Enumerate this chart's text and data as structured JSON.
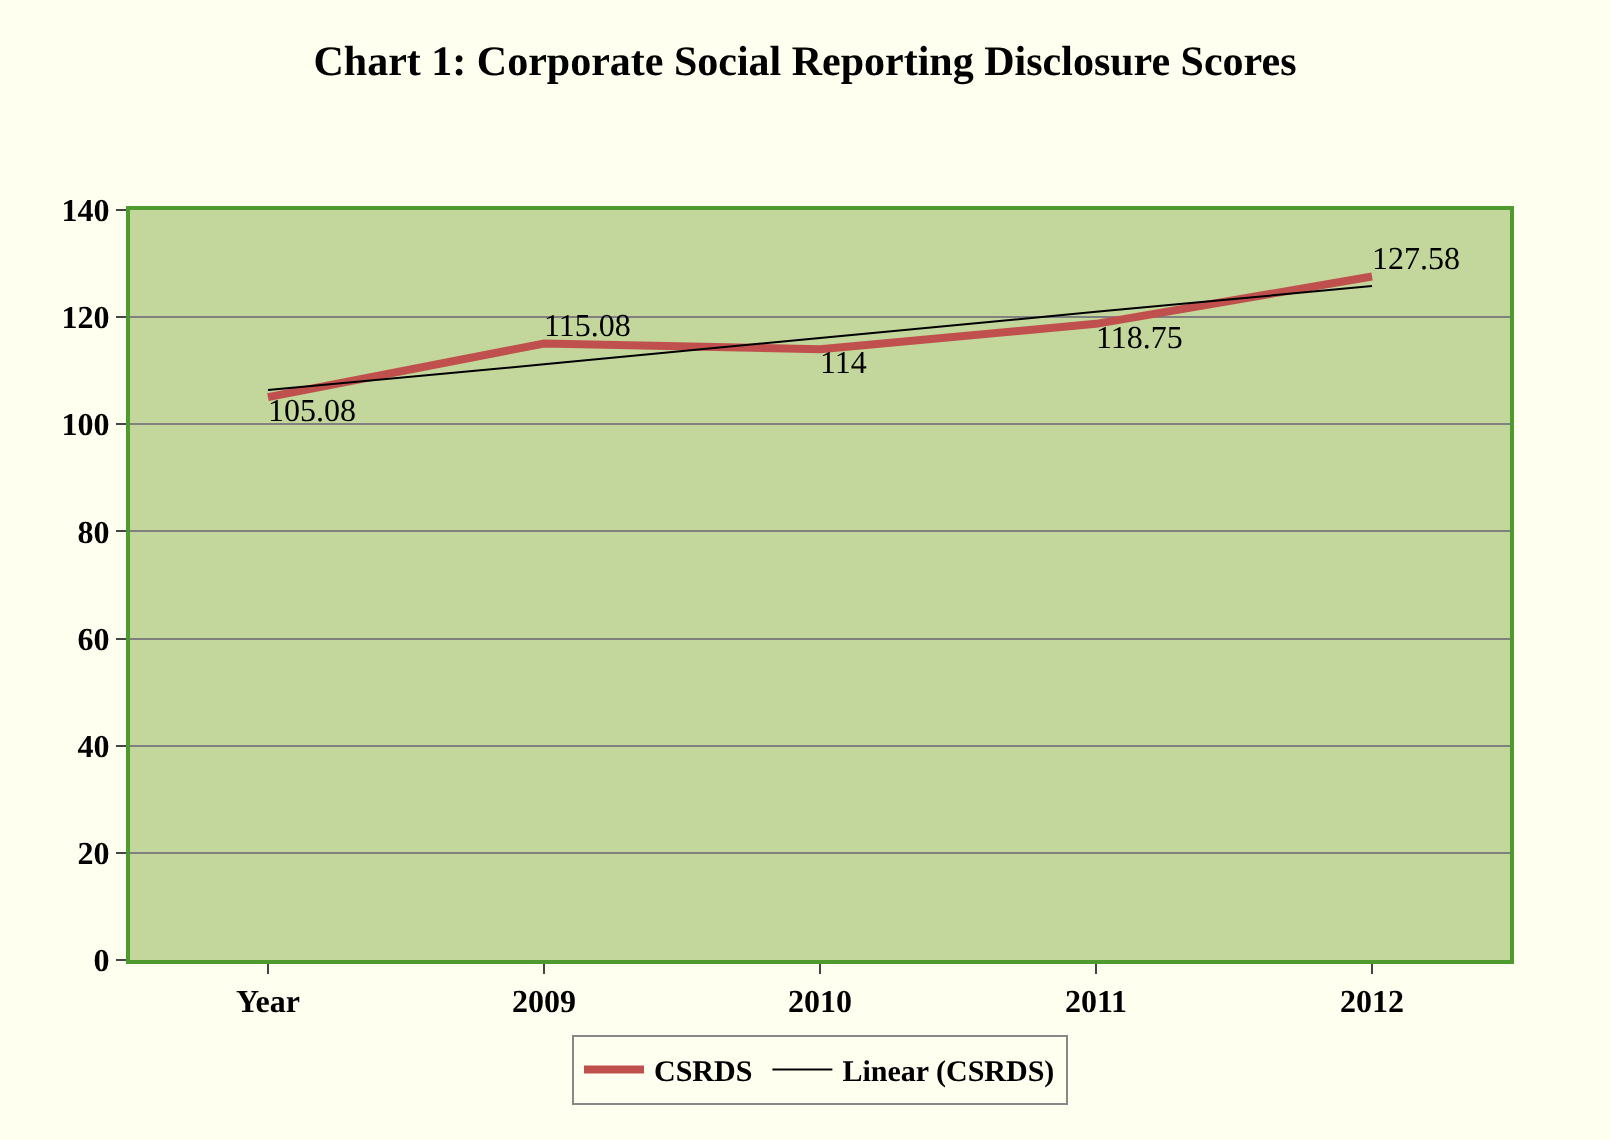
{
  "chart_data": {
    "type": "line",
    "title": "Chart 1: Corporate Social Reporting Disclosure Scores",
    "categories": [
      "Year",
      "2009",
      "2010",
      "2011",
      "2012"
    ],
    "series": [
      {
        "name": "CSRDS",
        "color": "#c0504d",
        "values": [
          105.08,
          115.08,
          114,
          118.75,
          127.58
        ],
        "value_labels": [
          "105.08",
          "115.08",
          "114",
          "118.75",
          "127.58"
        ]
      },
      {
        "name": "Linear (CSRDS)",
        "type": "line",
        "color": "#000000",
        "values": [
          106.4,
          111.2,
          116.1,
          121.0,
          125.8
        ]
      }
    ],
    "ylim": [
      0,
      140
    ],
    "yticks": [
      0,
      20,
      40,
      60,
      80,
      100,
      120,
      140
    ],
    "grid": "y",
    "legend": "bottom"
  }
}
